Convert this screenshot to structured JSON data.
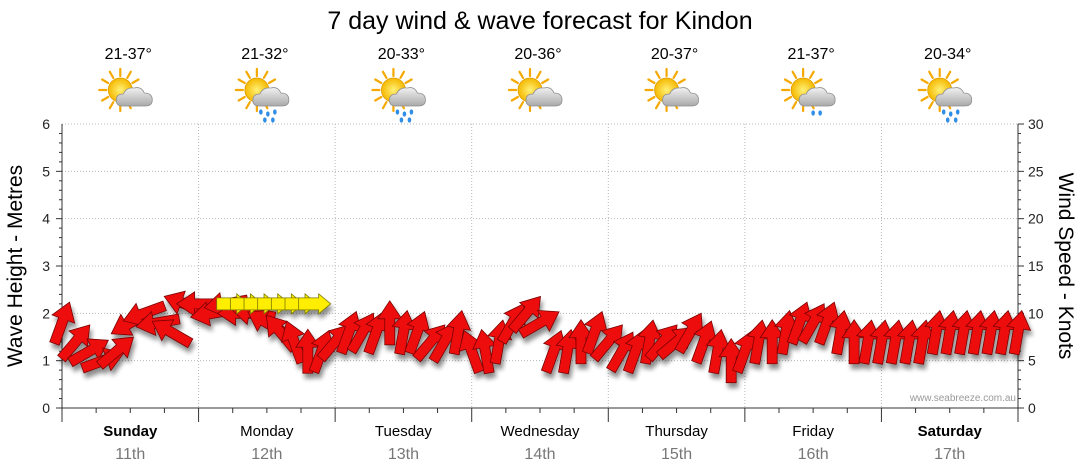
{
  "chart_data": {
    "type": "line",
    "title": "7 day wind & wave forecast for Kindon",
    "ylabel_left": "Wave Height - Metres",
    "ylabel_right": "Wind Speed - Knots",
    "ylim_left": [
      0,
      6
    ],
    "yticks_left": [
      "0",
      "1",
      "2",
      "3",
      "4",
      "5",
      "6"
    ],
    "ylim_right": [
      0,
      30
    ],
    "yticks_right": [
      "0",
      "5",
      "10",
      "15",
      "20",
      "25",
      "30"
    ],
    "grid": true,
    "days": [
      {
        "name": "Sunday",
        "date": "11th",
        "temp": "21-37°",
        "weather": "sun-cloud-icon",
        "bold": true
      },
      {
        "name": "Monday",
        "date": "12th",
        "temp": "21-32°",
        "weather": "sun-cloud-rain-icon",
        "bold": false
      },
      {
        "name": "Tuesday",
        "date": "13th",
        "temp": "20-33°",
        "weather": "sun-cloud-rain-icon",
        "bold": false
      },
      {
        "name": "Wednesday",
        "date": "14th",
        "temp": "20-36°",
        "weather": "sun-cloud-icon",
        "bold": false
      },
      {
        "name": "Thursday",
        "date": "15th",
        "temp": "20-37°",
        "weather": "sun-cloud-icon",
        "bold": false
      },
      {
        "name": "Friday",
        "date": "16th",
        "temp": "21-37°",
        "weather": "sun-cloud-drizzle-icon",
        "bold": false
      },
      {
        "name": "Saturday",
        "date": "17th",
        "temp": "20-34°",
        "weather": "sun-cloud-rain-icon",
        "bold": true
      }
    ],
    "series": [
      {
        "kind": "wind",
        "day_offset": [
          0,
          0.1,
          0.2,
          0.3,
          0.4,
          0.5,
          0.6,
          0.7,
          0.8,
          0.9,
          1,
          1.1,
          1.2,
          1.3,
          1.4,
          1.5,
          1.6,
          1.7,
          1.8,
          1.9,
          2,
          2.1,
          2.2,
          2.3,
          2.4,
          2.5,
          2.6,
          2.7,
          2.8,
          2.9,
          3,
          3.1,
          3.2,
          3.3,
          3.4,
          3.5,
          3.6,
          3.7,
          3.8,
          3.9,
          4,
          4.1,
          4.2,
          4.3,
          4.4,
          4.5,
          4.6,
          4.7,
          4.8,
          4.9,
          5,
          5.1,
          5.2,
          5.3,
          5.4,
          5.5,
          5.6,
          5.7,
          5.8,
          5.9,
          6,
          6.1,
          6.2,
          6.3,
          6.4,
          6.5,
          6.6,
          6.7,
          6.8,
          6.9,
          7
        ],
        "speed_knots": [
          9,
          7,
          6,
          5,
          6,
          9,
          10,
          9,
          8,
          11,
          11,
          10,
          11,
          10,
          10,
          9,
          8,
          7,
          6,
          6,
          7,
          8,
          8,
          8,
          9,
          8,
          8,
          7,
          7,
          8,
          6,
          6,
          7,
          9,
          10,
          9,
          6,
          6,
          7,
          8,
          7,
          6,
          6,
          7,
          7,
          7,
          8,
          7,
          6,
          5,
          6,
          7,
          7,
          8,
          9,
          9,
          9,
          8,
          7,
          7,
          7,
          7,
          7,
          7,
          8,
          8,
          8,
          8,
          8,
          8,
          8
        ],
        "direction_deg": [
          200,
          220,
          240,
          250,
          230,
          60,
          70,
          80,
          120,
          110,
          90,
          80,
          80,
          90,
          100,
          120,
          140,
          160,
          180,
          200,
          220,
          200,
          210,
          200,
          180,
          190,
          200,
          220,
          210,
          190,
          160,
          170,
          190,
          210,
          220,
          240,
          200,
          190,
          180,
          200,
          220,
          210,
          200,
          190,
          220,
          230,
          210,
          200,
          190,
          180,
          200,
          190,
          180,
          190,
          200,
          210,
          200,
          190,
          180,
          190,
          190,
          190,
          190,
          190,
          190,
          190,
          190,
          190,
          190,
          190,
          190
        ],
        "color": "#ee1111"
      },
      {
        "kind": "gusty-wind",
        "day_offset": [
          1.25,
          1.35,
          1.45,
          1.55,
          1.65,
          1.75,
          1.85
        ],
        "speed_knots": [
          11,
          11,
          11,
          11,
          11,
          11,
          11
        ],
        "direction_deg": [
          90,
          90,
          90,
          90,
          90,
          90,
          90
        ],
        "color": "#ffee00"
      }
    ]
  },
  "credit": "www.seabreeze.com.au"
}
